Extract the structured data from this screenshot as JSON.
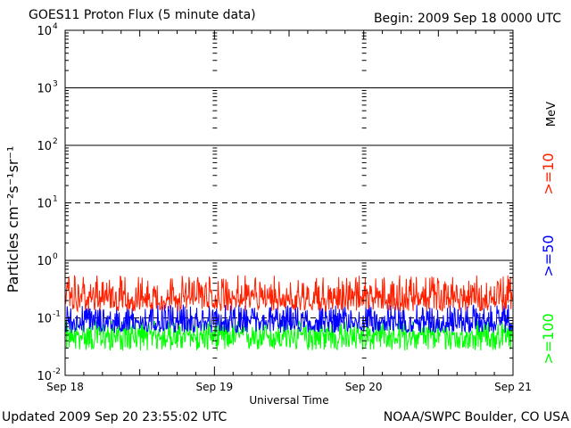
{
  "chart_data": {
    "type": "line",
    "title": "GOES11 Proton Flux (5 minute data)",
    "begin_label": "Begin: 2009 Sep 18 0000 UTC",
    "xlabel": "Universal Time",
    "ylabel": "Particles cm⁻²s⁻¹sr⁻¹",
    "y_scale": "log",
    "ylim": [
      0.01,
      10000
    ],
    "y_ticks": [
      {
        "base": "10",
        "exp": "4",
        "value": 10000
      },
      {
        "base": "10",
        "exp": "3",
        "value": 1000
      },
      {
        "base": "10",
        "exp": "2",
        "value": 100
      },
      {
        "base": "10",
        "exp": "1",
        "value": 10
      },
      {
        "base": "10",
        "exp": "0",
        "value": 1
      },
      {
        "base": "10",
        "exp": "-1",
        "value": 0.1
      },
      {
        "base": "10",
        "exp": "-2",
        "value": 0.01
      }
    ],
    "x_ticks": [
      {
        "label": "Sep 18",
        "day": 0
      },
      {
        "label": "Sep 19",
        "day": 1
      },
      {
        "label": "Sep 20",
        "day": 2
      },
      {
        "label": "Sep 21",
        "day": 3
      }
    ],
    "xlim_days": [
      0,
      3
    ],
    "data_end_day": 2.997,
    "thresholds": [
      {
        "value": 10,
        "style": "dashed"
      },
      {
        "value": 0.1,
        "style": "dashed"
      },
      {
        "value": 100,
        "style": "solid"
      },
      {
        "value": 1000,
        "style": "solid"
      },
      {
        "value": 1,
        "style": "solid"
      }
    ],
    "series": [
      {
        "name": ">=10",
        "color": "#ff2000",
        "baseline": 0.22,
        "min": 0.13,
        "max": 0.55
      },
      {
        "name": ">=50",
        "color": "#0000ff",
        "baseline": 0.085,
        "min": 0.055,
        "max": 0.17
      },
      {
        "name": ">=100",
        "color": "#00ff00",
        "baseline": 0.05,
        "min": 0.027,
        "max": 0.09
      }
    ],
    "unit_label": "MeV",
    "legend_placement": "right"
  },
  "footer": {
    "updated": "Updated 2009 Sep 20 23:55:02 UTC",
    "source": "NOAA/SWPC Boulder, CO USA"
  }
}
